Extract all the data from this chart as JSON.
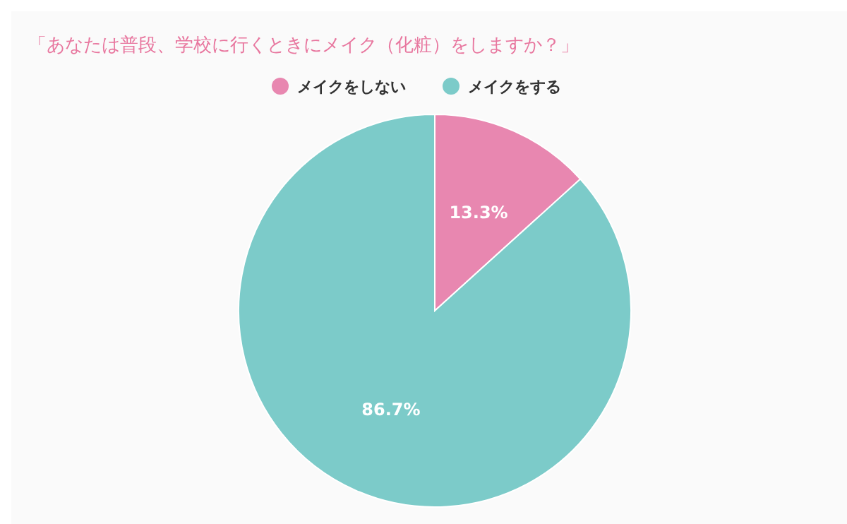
{
  "chart_data": {
    "type": "pie",
    "title": "「あなたは普段、学校に行くときにメイク（化粧）をしますか？」",
    "categories": [
      "メイクをしない",
      "メイクをする"
    ],
    "values": [
      13.3,
      86.7
    ],
    "colors": [
      "#e887b0",
      "#7ccbc9"
    ],
    "value_labels": [
      "13.3%",
      "86.7%"
    ],
    "legend": "top"
  }
}
